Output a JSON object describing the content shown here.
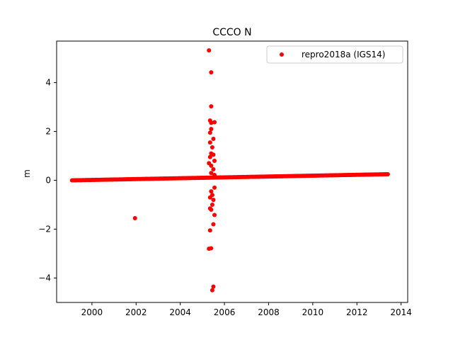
{
  "chart_data": {
    "type": "scatter",
    "title": "CCCO N",
    "xlabel": "",
    "ylabel": "m",
    "xlim": [
      1998.4,
      2014.3
    ],
    "ylim": [
      -5.0,
      5.7
    ],
    "xticks": [
      2000,
      2002,
      2004,
      2006,
      2008,
      2010,
      2012,
      2014
    ],
    "yticks": [
      -4,
      -2,
      0,
      2,
      4
    ],
    "grid": false,
    "legend_position": "top-right",
    "series": [
      {
        "name": "repro2018a (IGS14)",
        "color": "#ff0000",
        "marker": "circle",
        "trend": {
          "x_start": 1999.1,
          "y_start": 0.0,
          "x_end": 2013.4,
          "y_end": 0.25
        },
        "points": [
          [
            2001.95,
            -1.55
          ],
          [
            2005.3,
            5.32
          ],
          [
            2005.4,
            4.42
          ],
          [
            2005.4,
            3.03
          ],
          [
            2005.35,
            2.45
          ],
          [
            2005.4,
            2.35
          ],
          [
            2005.55,
            2.38
          ],
          [
            2005.4,
            2.1
          ],
          [
            2005.35,
            1.95
          ],
          [
            2005.5,
            1.7
          ],
          [
            2005.35,
            1.55
          ],
          [
            2005.45,
            1.35
          ],
          [
            2005.4,
            1.1
          ],
          [
            2005.5,
            1.05
          ],
          [
            2005.35,
            0.95
          ],
          [
            2005.55,
            0.8
          ],
          [
            2005.3,
            0.7
          ],
          [
            2005.4,
            0.6
          ],
          [
            2005.5,
            0.45
          ],
          [
            2005.4,
            0.3
          ],
          [
            2005.55,
            0.22
          ],
          [
            2005.55,
            -0.3
          ],
          [
            2005.4,
            -0.45
          ],
          [
            2005.45,
            -0.6
          ],
          [
            2005.35,
            -0.7
          ],
          [
            2005.5,
            -0.8
          ],
          [
            2005.45,
            -1.0
          ],
          [
            2005.35,
            -1.15
          ],
          [
            2005.4,
            -1.2
          ],
          [
            2005.55,
            -1.42
          ],
          [
            2005.5,
            -1.8
          ],
          [
            2005.35,
            -2.05
          ],
          [
            2005.3,
            -2.8
          ],
          [
            2005.4,
            -2.78
          ],
          [
            2005.5,
            -4.35
          ],
          [
            2005.45,
            -4.5
          ]
        ]
      }
    ]
  }
}
